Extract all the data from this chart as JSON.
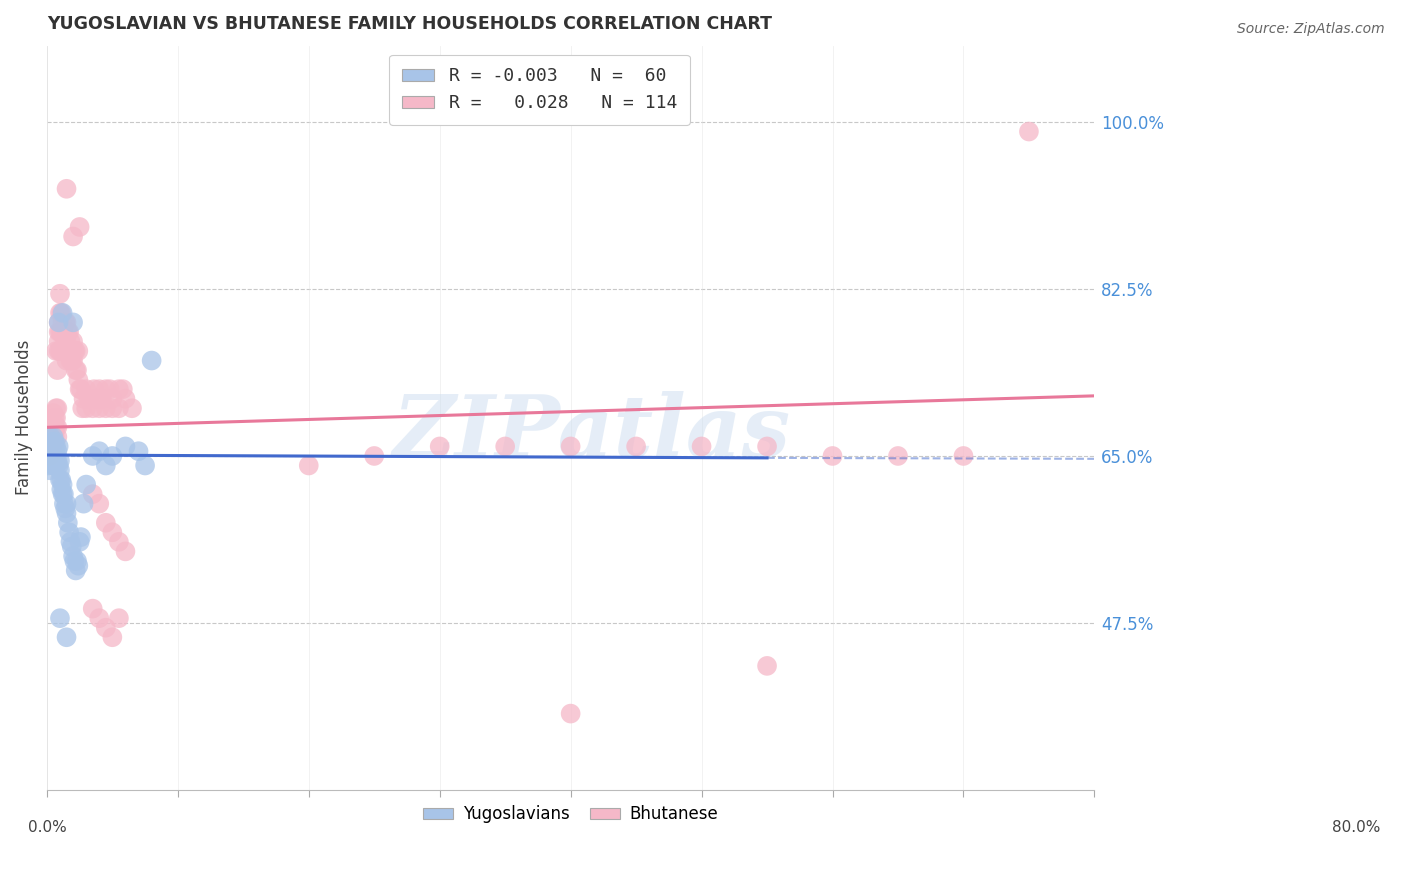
{
  "title": "YUGOSLAVIAN VS BHUTANESE FAMILY HOUSEHOLDS CORRELATION CHART",
  "source": "Source: ZipAtlas.com",
  "ylabel": "Family Households",
  "ytick_labels": [
    "100.0%",
    "82.5%",
    "65.0%",
    "47.5%"
  ],
  "ytick_values": [
    1.0,
    0.825,
    0.65,
    0.475
  ],
  "xlim": [
    0.0,
    0.8
  ],
  "ylim": [
    0.3,
    1.08
  ],
  "blue_color": "#a8c4e8",
  "pink_color": "#f5b8c8",
  "blue_line_color": "#4169cd",
  "pink_line_color": "#e8789a",
  "grid_color": "#c8c8c8",
  "watermark": "ZIPatlas",
  "yugoslavian_label": "Yugoslavians",
  "bhutanese_label": "Bhutanese",
  "blue_scatter": [
    [
      0.001,
      0.64
    ],
    [
      0.002,
      0.645
    ],
    [
      0.002,
      0.635
    ],
    [
      0.003,
      0.65
    ],
    [
      0.003,
      0.66
    ],
    [
      0.003,
      0.67
    ],
    [
      0.004,
      0.645
    ],
    [
      0.004,
      0.655
    ],
    [
      0.004,
      0.665
    ],
    [
      0.005,
      0.64
    ],
    [
      0.005,
      0.65
    ],
    [
      0.005,
      0.66
    ],
    [
      0.005,
      0.67
    ],
    [
      0.006,
      0.645
    ],
    [
      0.006,
      0.655
    ],
    [
      0.006,
      0.665
    ],
    [
      0.007,
      0.64
    ],
    [
      0.007,
      0.65
    ],
    [
      0.007,
      0.66
    ],
    [
      0.008,
      0.645
    ],
    [
      0.008,
      0.655
    ],
    [
      0.009,
      0.64
    ],
    [
      0.009,
      0.66
    ],
    [
      0.01,
      0.625
    ],
    [
      0.01,
      0.635
    ],
    [
      0.01,
      0.645
    ],
    [
      0.011,
      0.615
    ],
    [
      0.011,
      0.625
    ],
    [
      0.012,
      0.61
    ],
    [
      0.012,
      0.62
    ],
    [
      0.013,
      0.6
    ],
    [
      0.013,
      0.61
    ],
    [
      0.014,
      0.595
    ],
    [
      0.015,
      0.59
    ],
    [
      0.015,
      0.6
    ],
    [
      0.016,
      0.58
    ],
    [
      0.017,
      0.57
    ],
    [
      0.018,
      0.56
    ],
    [
      0.019,
      0.555
    ],
    [
      0.02,
      0.545
    ],
    [
      0.021,
      0.54
    ],
    [
      0.022,
      0.53
    ],
    [
      0.023,
      0.54
    ],
    [
      0.024,
      0.535
    ],
    [
      0.025,
      0.56
    ],
    [
      0.026,
      0.565
    ],
    [
      0.028,
      0.6
    ],
    [
      0.03,
      0.62
    ],
    [
      0.035,
      0.65
    ],
    [
      0.04,
      0.655
    ],
    [
      0.045,
      0.64
    ],
    [
      0.05,
      0.65
    ],
    [
      0.06,
      0.66
    ],
    [
      0.07,
      0.655
    ],
    [
      0.08,
      0.75
    ],
    [
      0.009,
      0.79
    ],
    [
      0.012,
      0.8
    ],
    [
      0.02,
      0.79
    ],
    [
      0.01,
      0.48
    ],
    [
      0.015,
      0.46
    ],
    [
      0.075,
      0.64
    ]
  ],
  "pink_scatter": [
    [
      0.001,
      0.66
    ],
    [
      0.002,
      0.65
    ],
    [
      0.002,
      0.67
    ],
    [
      0.003,
      0.665
    ],
    [
      0.003,
      0.675
    ],
    [
      0.004,
      0.66
    ],
    [
      0.004,
      0.67
    ],
    [
      0.004,
      0.68
    ],
    [
      0.005,
      0.665
    ],
    [
      0.005,
      0.675
    ],
    [
      0.005,
      0.685
    ],
    [
      0.005,
      0.695
    ],
    [
      0.006,
      0.66
    ],
    [
      0.006,
      0.67
    ],
    [
      0.006,
      0.68
    ],
    [
      0.006,
      0.69
    ],
    [
      0.007,
      0.68
    ],
    [
      0.007,
      0.69
    ],
    [
      0.007,
      0.7
    ],
    [
      0.007,
      0.76
    ],
    [
      0.008,
      0.67
    ],
    [
      0.008,
      0.68
    ],
    [
      0.008,
      0.7
    ],
    [
      0.008,
      0.74
    ],
    [
      0.009,
      0.76
    ],
    [
      0.009,
      0.77
    ],
    [
      0.009,
      0.78
    ],
    [
      0.009,
      0.79
    ],
    [
      0.01,
      0.76
    ],
    [
      0.01,
      0.78
    ],
    [
      0.01,
      0.8
    ],
    [
      0.01,
      0.82
    ],
    [
      0.011,
      0.76
    ],
    [
      0.011,
      0.78
    ],
    [
      0.011,
      0.8
    ],
    [
      0.012,
      0.76
    ],
    [
      0.012,
      0.78
    ],
    [
      0.012,
      0.79
    ],
    [
      0.013,
      0.76
    ],
    [
      0.013,
      0.78
    ],
    [
      0.014,
      0.77
    ],
    [
      0.014,
      0.79
    ],
    [
      0.015,
      0.75
    ],
    [
      0.015,
      0.77
    ],
    [
      0.015,
      0.79
    ],
    [
      0.016,
      0.76
    ],
    [
      0.016,
      0.78
    ],
    [
      0.017,
      0.76
    ],
    [
      0.017,
      0.78
    ],
    [
      0.018,
      0.75
    ],
    [
      0.018,
      0.77
    ],
    [
      0.019,
      0.75
    ],
    [
      0.019,
      0.76
    ],
    [
      0.02,
      0.75
    ],
    [
      0.02,
      0.77
    ],
    [
      0.021,
      0.76
    ],
    [
      0.022,
      0.74
    ],
    [
      0.022,
      0.76
    ],
    [
      0.023,
      0.74
    ],
    [
      0.024,
      0.73
    ],
    [
      0.024,
      0.76
    ],
    [
      0.025,
      0.72
    ],
    [
      0.026,
      0.72
    ],
    [
      0.027,
      0.7
    ],
    [
      0.028,
      0.71
    ],
    [
      0.03,
      0.7
    ],
    [
      0.03,
      0.72
    ],
    [
      0.032,
      0.71
    ],
    [
      0.035,
      0.7
    ],
    [
      0.036,
      0.72
    ],
    [
      0.038,
      0.71
    ],
    [
      0.04,
      0.72
    ],
    [
      0.04,
      0.7
    ],
    [
      0.042,
      0.71
    ],
    [
      0.045,
      0.7
    ],
    [
      0.045,
      0.72
    ],
    [
      0.048,
      0.72
    ],
    [
      0.05,
      0.71
    ],
    [
      0.05,
      0.7
    ],
    [
      0.055,
      0.7
    ],
    [
      0.055,
      0.72
    ],
    [
      0.058,
      0.72
    ],
    [
      0.06,
      0.71
    ],
    [
      0.065,
      0.7
    ],
    [
      0.015,
      0.93
    ],
    [
      0.025,
      0.89
    ],
    [
      0.02,
      0.88
    ],
    [
      0.035,
      0.61
    ],
    [
      0.04,
      0.6
    ],
    [
      0.045,
      0.58
    ],
    [
      0.05,
      0.57
    ],
    [
      0.055,
      0.56
    ],
    [
      0.06,
      0.55
    ],
    [
      0.035,
      0.49
    ],
    [
      0.04,
      0.48
    ],
    [
      0.045,
      0.47
    ],
    [
      0.05,
      0.46
    ],
    [
      0.055,
      0.48
    ],
    [
      0.2,
      0.64
    ],
    [
      0.25,
      0.65
    ],
    [
      0.3,
      0.66
    ],
    [
      0.35,
      0.66
    ],
    [
      0.4,
      0.66
    ],
    [
      0.45,
      0.66
    ],
    [
      0.5,
      0.66
    ],
    [
      0.55,
      0.66
    ],
    [
      0.6,
      0.65
    ],
    [
      0.65,
      0.65
    ],
    [
      0.7,
      0.65
    ],
    [
      0.75,
      0.99
    ],
    [
      0.55,
      0.43
    ],
    [
      0.4,
      0.38
    ]
  ],
  "blue_regression": {
    "x_start": 0.0,
    "y_start": 0.651,
    "x_end": 0.55,
    "y_end": 0.648
  },
  "pink_regression": {
    "x_start": 0.0,
    "y_start": 0.68,
    "x_end": 0.8,
    "y_end": 0.713
  }
}
